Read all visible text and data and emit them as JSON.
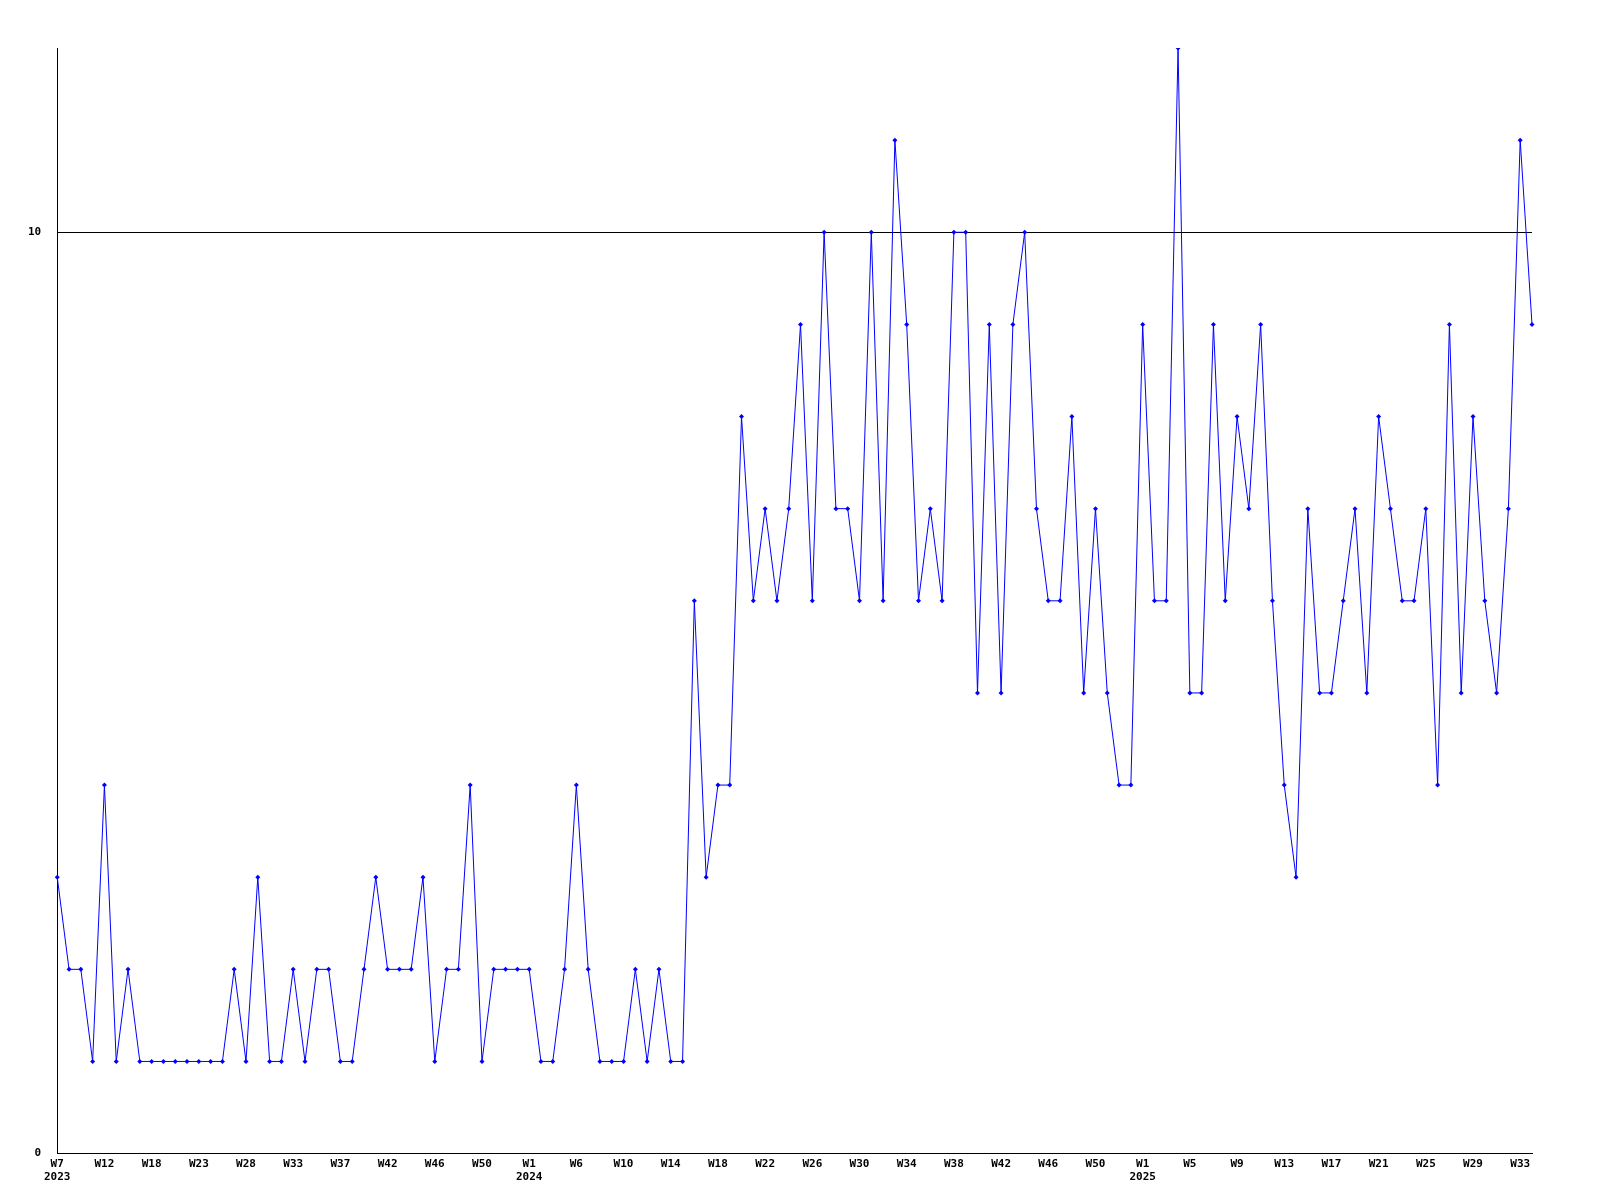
{
  "chart_data": {
    "type": "line",
    "categories": [
      "W7\n2023",
      null,
      null,
      null,
      "W12",
      null,
      null,
      null,
      "W18",
      null,
      null,
      null,
      "W23",
      null,
      null,
      null,
      "W28",
      null,
      null,
      null,
      "W33",
      null,
      null,
      null,
      "W37",
      null,
      null,
      null,
      "W42",
      null,
      null,
      null,
      "W46",
      null,
      null,
      null,
      "W50",
      null,
      null,
      null,
      "W1\n2024",
      null,
      null,
      null,
      "W6",
      null,
      null,
      null,
      "W10",
      null,
      null,
      null,
      "W14",
      null,
      null,
      null,
      "W18",
      null,
      null,
      null,
      "W22",
      null,
      null,
      null,
      "W26",
      null,
      null,
      null,
      "W30",
      null,
      null,
      null,
      "W34",
      null,
      null,
      null,
      "W38",
      null,
      null,
      null,
      "W42",
      null,
      null,
      null,
      "W46",
      null,
      null,
      null,
      "W50",
      null,
      null,
      null,
      "W1\n2025",
      null,
      null,
      null,
      "W5",
      null,
      null,
      null,
      "W9",
      null,
      null,
      null,
      "W13",
      null,
      null,
      null,
      "W17",
      null,
      null,
      null,
      "W21",
      null,
      null,
      null,
      "W25",
      null,
      null,
      null,
      "W29",
      null,
      null,
      null,
      "W33",
      null
    ],
    "series": [
      {
        "color": "#0000ff",
        "values": [
          3,
          2,
          2,
          1,
          4,
          1,
          2,
          1,
          1,
          1,
          1,
          1,
          1,
          1,
          1,
          2,
          1,
          3,
          1,
          1,
          2,
          1,
          2,
          2,
          1,
          1,
          2,
          3,
          2,
          2,
          2,
          3,
          1,
          2,
          2,
          4,
          1,
          2,
          2,
          2,
          2,
          1,
          1,
          2,
          4,
          2,
          1,
          1,
          1,
          2,
          1,
          2,
          1,
          1,
          6,
          3,
          4,
          4,
          8,
          6,
          7,
          6,
          7,
          9,
          6,
          10,
          7,
          7,
          6,
          10,
          6,
          11,
          9,
          6,
          7,
          6,
          10,
          10,
          5,
          9,
          5,
          9,
          10,
          7,
          6,
          6,
          8,
          5,
          7,
          5,
          4,
          4,
          9,
          6,
          6,
          12,
          5,
          5,
          9,
          6,
          8,
          7,
          9,
          6,
          4,
          3,
          7,
          5,
          5,
          6,
          7,
          5,
          8,
          7,
          6,
          6,
          7,
          4,
          9,
          5,
          8,
          6,
          5,
          7,
          11,
          9
        ]
      }
    ],
    "ylim": [
      0,
      12
    ],
    "yticks": [
      0,
      10
    ],
    "grid": "y",
    "marker": "diamond",
    "line_style": "solid",
    "legend": false
  }
}
